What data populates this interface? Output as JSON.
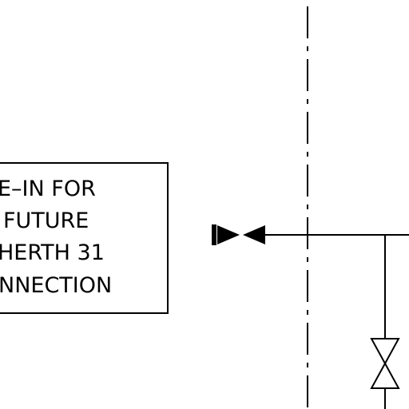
{
  "note": {
    "lines": [
      "E–IN FOR",
      "FUTURE",
      "HERTH 31",
      "NNECTION"
    ]
  },
  "colors": {
    "line": "#000000",
    "background": "#ffffff"
  }
}
